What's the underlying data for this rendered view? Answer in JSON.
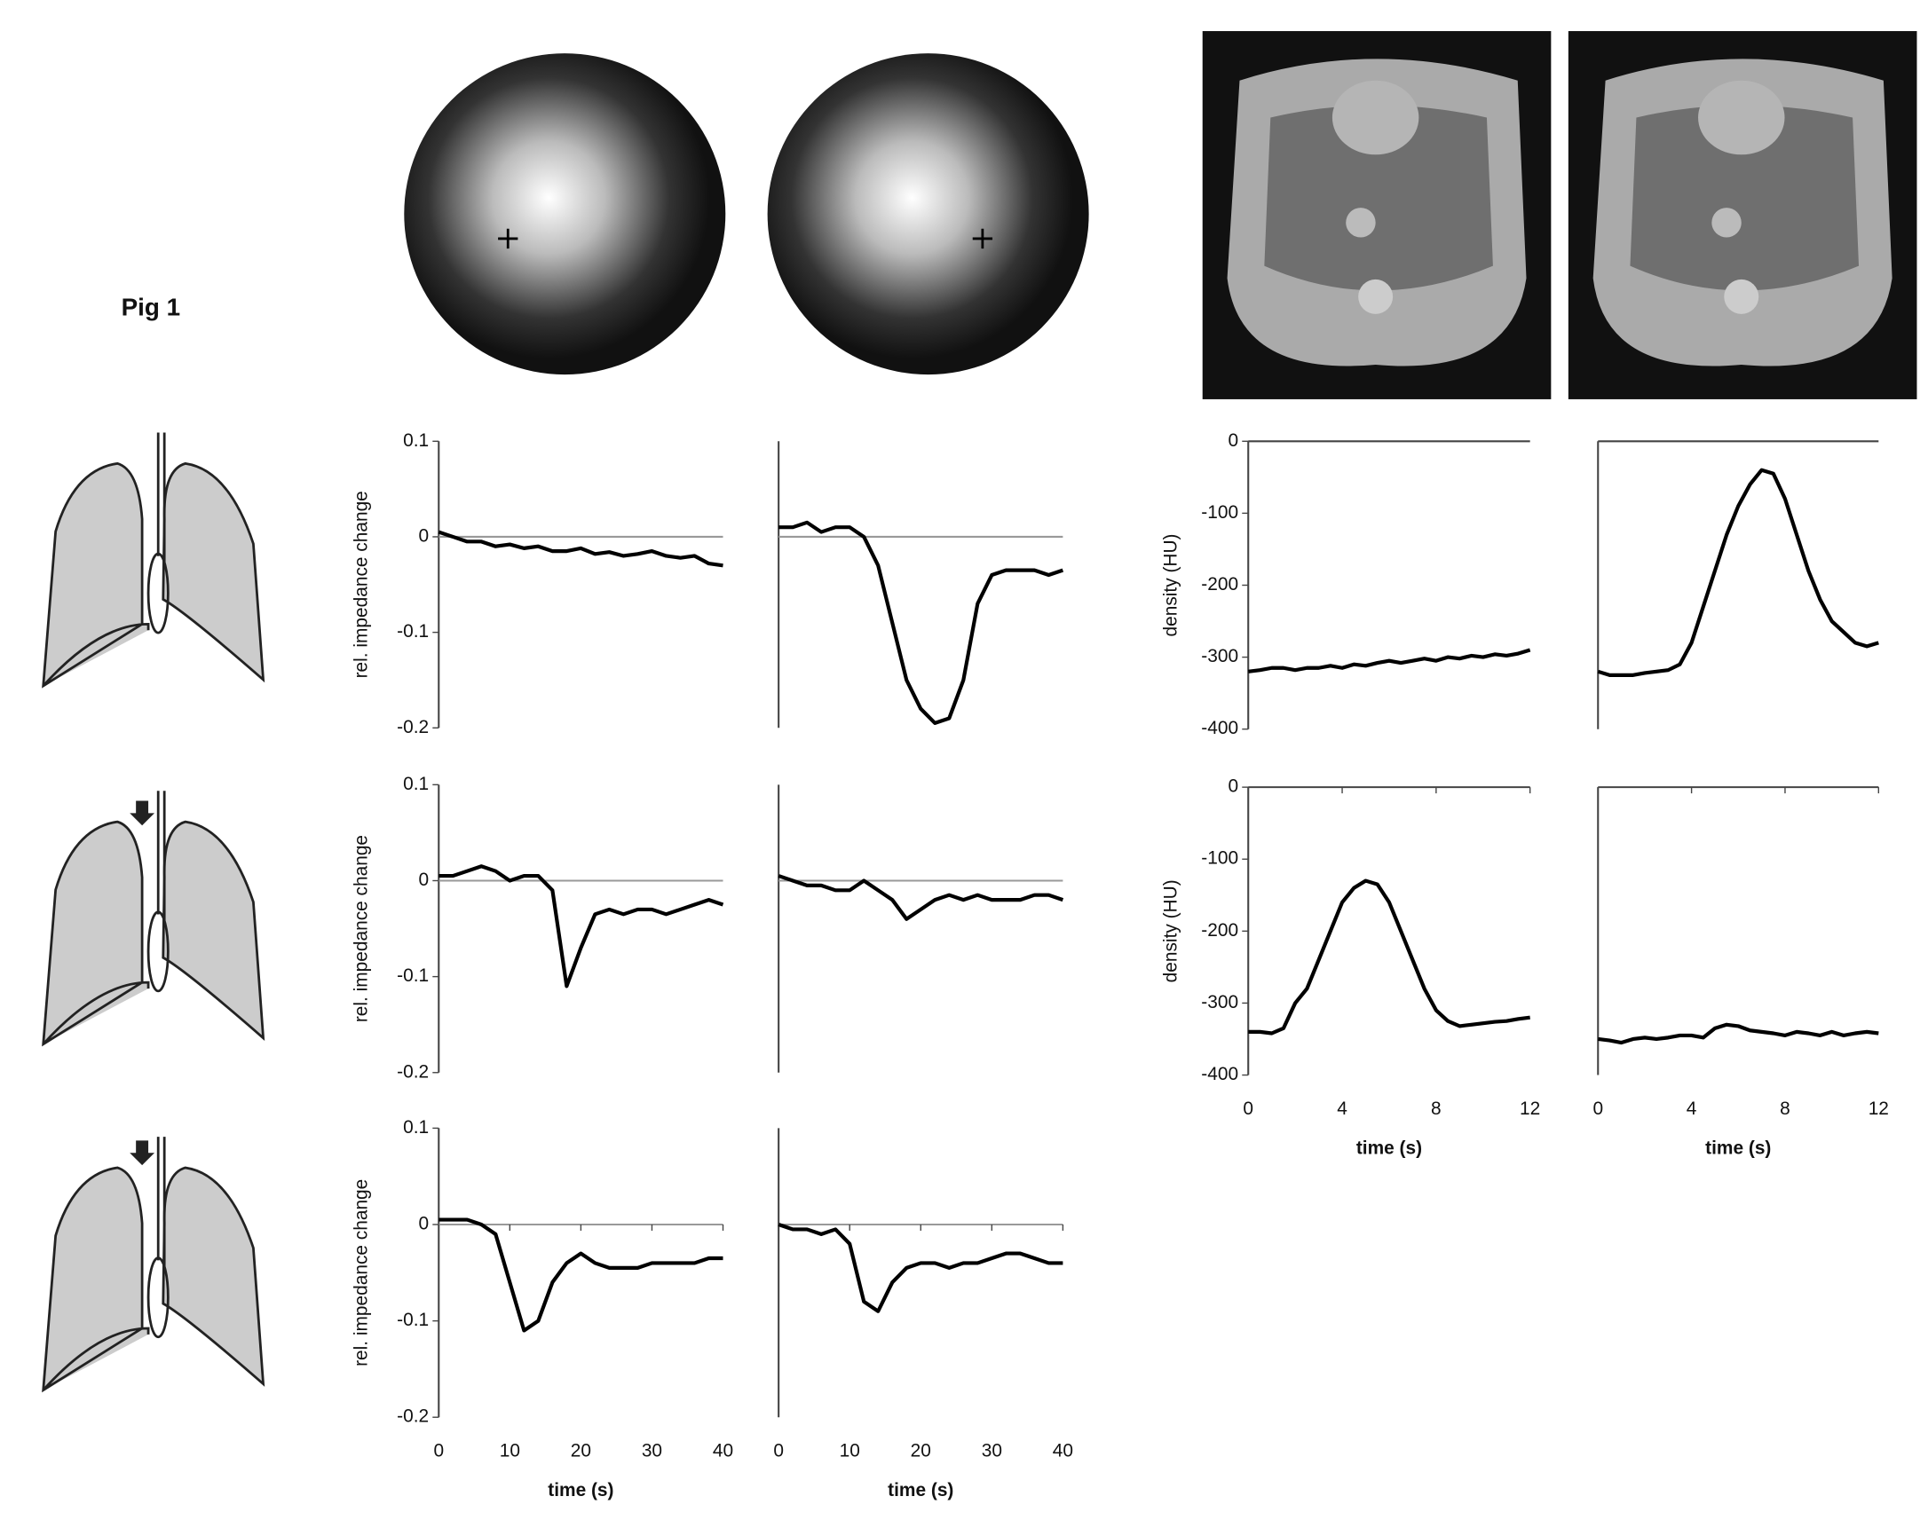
{
  "label": "Pig 1",
  "chart_data": [
    {
      "type": "line",
      "ylabel": "rel. impedance change",
      "color": "#000",
      "xlim": [
        0,
        40
      ],
      "ylim": [
        -0.2,
        0.1
      ],
      "yticks": [
        -0.2,
        -0.1,
        0,
        0.1
      ],
      "x": [
        0,
        2,
        4,
        6,
        8,
        10,
        12,
        14,
        16,
        18,
        20,
        22,
        24,
        26,
        28,
        30,
        32,
        34,
        36,
        38,
        40
      ],
      "values": [
        0.005,
        0,
        -0.005,
        -0.005,
        -0.01,
        -0.008,
        -0.012,
        -0.01,
        -0.015,
        -0.015,
        -0.012,
        -0.018,
        -0.016,
        -0.02,
        -0.018,
        -0.015,
        -0.02,
        -0.022,
        -0.02,
        -0.028,
        -0.03
      ]
    },
    {
      "type": "line",
      "color": "#000",
      "xlim": [
        0,
        40
      ],
      "ylim": [
        -0.2,
        0.1
      ],
      "x": [
        0,
        2,
        4,
        6,
        8,
        10,
        12,
        14,
        16,
        18,
        20,
        22,
        24,
        26,
        28,
        30,
        32,
        34,
        36,
        38,
        40
      ],
      "values": [
        0.01,
        0.01,
        0.015,
        0.005,
        0.01,
        0.01,
        0,
        -0.03,
        -0.09,
        -0.15,
        -0.18,
        -0.195,
        -0.19,
        -0.15,
        -0.07,
        -0.04,
        -0.035,
        -0.035,
        -0.035,
        -0.04,
        -0.035
      ]
    },
    {
      "type": "line",
      "ylabel": "rel. impedance change",
      "color": "#000",
      "xlim": [
        0,
        40
      ],
      "ylim": [
        -0.2,
        0.1
      ],
      "yticks": [
        -0.2,
        -0.1,
        0,
        0.1
      ],
      "x": [
        0,
        2,
        4,
        6,
        8,
        10,
        12,
        14,
        16,
        18,
        20,
        22,
        24,
        26,
        28,
        30,
        32,
        34,
        36,
        38,
        40
      ],
      "values": [
        0.005,
        0.005,
        0.01,
        0.015,
        0.01,
        0,
        0.005,
        0.005,
        -0.01,
        -0.11,
        -0.07,
        -0.035,
        -0.03,
        -0.035,
        -0.03,
        -0.03,
        -0.035,
        -0.03,
        -0.025,
        -0.02,
        -0.025
      ]
    },
    {
      "type": "line",
      "color": "#000",
      "xlim": [
        0,
        40
      ],
      "ylim": [
        -0.2,
        0.1
      ],
      "x": [
        0,
        2,
        4,
        6,
        8,
        10,
        12,
        14,
        16,
        18,
        20,
        22,
        24,
        26,
        28,
        30,
        32,
        34,
        36,
        38,
        40
      ],
      "values": [
        0.005,
        0,
        -0.005,
        -0.005,
        -0.01,
        -0.01,
        0,
        -0.01,
        -0.02,
        -0.04,
        -0.03,
        -0.02,
        -0.015,
        -0.02,
        -0.015,
        -0.02,
        -0.02,
        -0.02,
        -0.015,
        -0.015,
        -0.02
      ]
    },
    {
      "type": "line",
      "ylabel": "rel. impedance change",
      "xlabel": "time (s)",
      "color": "#000",
      "xlim": [
        0,
        40
      ],
      "ylim": [
        -0.2,
        0.1
      ],
      "yticks": [
        -0.2,
        -0.1,
        0,
        0.1
      ],
      "xticks": [
        0,
        10,
        20,
        30,
        40
      ],
      "x": [
        0,
        2,
        4,
        6,
        8,
        10,
        12,
        14,
        16,
        18,
        20,
        22,
        24,
        26,
        28,
        30,
        32,
        34,
        36,
        38,
        40
      ],
      "values": [
        0.005,
        0.005,
        0.005,
        0,
        -0.01,
        -0.06,
        -0.11,
        -0.1,
        -0.06,
        -0.04,
        -0.03,
        -0.04,
        -0.045,
        -0.045,
        -0.045,
        -0.04,
        -0.04,
        -0.04,
        -0.04,
        -0.035,
        -0.035
      ]
    },
    {
      "type": "line",
      "xlabel": "time (s)",
      "color": "#000",
      "xlim": [
        0,
        40
      ],
      "ylim": [
        -0.2,
        0.1
      ],
      "xticks": [
        0,
        10,
        20,
        30,
        40
      ],
      "x": [
        0,
        2,
        4,
        6,
        8,
        10,
        12,
        14,
        16,
        18,
        20,
        22,
        24,
        26,
        28,
        30,
        32,
        34,
        36,
        38,
        40
      ],
      "values": [
        0,
        -0.005,
        -0.005,
        -0.01,
        -0.005,
        -0.02,
        -0.08,
        -0.09,
        -0.06,
        -0.045,
        -0.04,
        -0.04,
        -0.045,
        -0.04,
        -0.04,
        -0.035,
        -0.03,
        -0.03,
        -0.035,
        -0.04,
        -0.04
      ]
    },
    {
      "type": "line",
      "ylabel": "density (HU)",
      "color": "#000",
      "xlim": [
        0,
        12
      ],
      "ylim": [
        -400,
        0
      ],
      "yticks": [
        -400,
        -300,
        -200,
        -100,
        0
      ],
      "x": [
        0,
        0.5,
        1,
        1.5,
        2,
        2.5,
        3,
        3.5,
        4,
        4.5,
        5,
        5.5,
        6,
        6.5,
        7,
        7.5,
        8,
        8.5,
        9,
        9.5,
        10,
        10.5,
        11,
        11.5,
        12
      ],
      "values": [
        -320,
        -318,
        -315,
        -315,
        -318,
        -315,
        -315,
        -312,
        -315,
        -310,
        -312,
        -308,
        -305,
        -308,
        -305,
        -302,
        -305,
        -300,
        -302,
        -298,
        -300,
        -296,
        -298,
        -295,
        -290
      ]
    },
    {
      "type": "line",
      "color": "#000",
      "xlim": [
        0,
        12
      ],
      "ylim": [
        -400,
        0
      ],
      "x": [
        0,
        0.5,
        1,
        1.5,
        2,
        2.5,
        3,
        3.5,
        4,
        4.5,
        5,
        5.5,
        6,
        6.5,
        7,
        7.5,
        8,
        8.5,
        9,
        9.5,
        10,
        10.5,
        11,
        11.5,
        12
      ],
      "values": [
        -320,
        -325,
        -325,
        -325,
        -322,
        -320,
        -318,
        -310,
        -280,
        -230,
        -180,
        -130,
        -90,
        -60,
        -40,
        -45,
        -80,
        -130,
        -180,
        -220,
        -250,
        -265,
        -280,
        -285,
        -280
      ]
    },
    {
      "type": "line",
      "ylabel": "density (HU)",
      "xlabel": "time (s)",
      "color": "#000",
      "xlim": [
        0,
        12
      ],
      "ylim": [
        -400,
        0
      ],
      "yticks": [
        -400,
        -300,
        -200,
        -100,
        0
      ],
      "xticks": [
        0,
        4,
        8,
        12
      ],
      "x": [
        0,
        0.5,
        1,
        1.5,
        2,
        2.5,
        3,
        3.5,
        4,
        4.5,
        5,
        5.5,
        6,
        6.5,
        7,
        7.5,
        8,
        8.5,
        9,
        9.5,
        10,
        10.5,
        11,
        11.5,
        12
      ],
      "values": [
        -340,
        -340,
        -342,
        -335,
        -300,
        -280,
        -240,
        -200,
        -160,
        -140,
        -130,
        -135,
        -160,
        -200,
        -240,
        -280,
        -310,
        -325,
        -332,
        -330,
        -328,
        -326,
        -325,
        -322,
        -320
      ]
    },
    {
      "type": "line",
      "xlabel": "time (s)",
      "color": "#000",
      "xlim": [
        0,
        12
      ],
      "ylim": [
        -400,
        0
      ],
      "xticks": [
        0,
        4,
        8,
        12
      ],
      "x": [
        0,
        0.5,
        1,
        1.5,
        2,
        2.5,
        3,
        3.5,
        4,
        4.5,
        5,
        5.5,
        6,
        6.5,
        7,
        7.5,
        8,
        8.5,
        9,
        9.5,
        10,
        10.5,
        11,
        11.5,
        12
      ],
      "values": [
        -350,
        -352,
        -355,
        -350,
        -348,
        -350,
        -348,
        -345,
        -345,
        -348,
        -335,
        -330,
        -332,
        -338,
        -340,
        -342,
        -345,
        -340,
        -342,
        -345,
        -340,
        -345,
        -342,
        -340,
        -342
      ]
    }
  ]
}
